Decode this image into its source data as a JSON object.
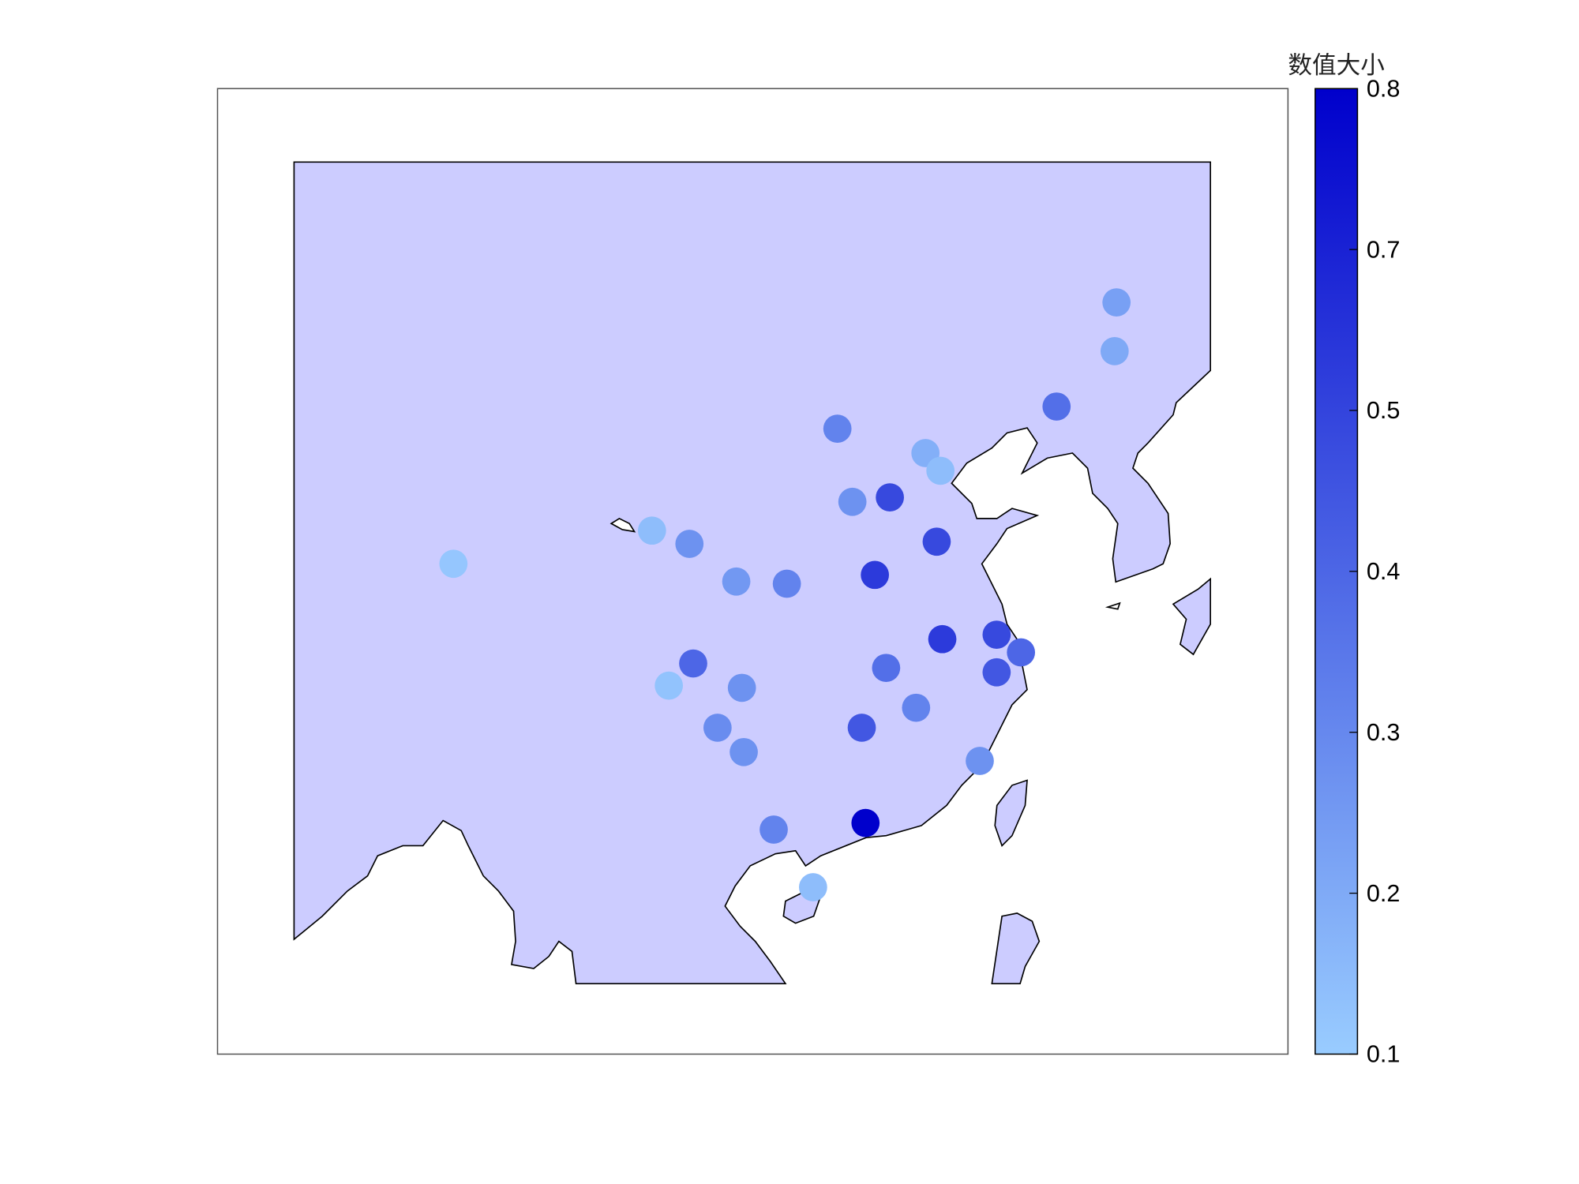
{
  "chart_data": {
    "type": "scatter",
    "title": "",
    "colorbar": {
      "title": "数值大小",
      "range": [
        0.1,
        0.8
      ],
      "tick_labels": [
        "0.8",
        "0.7",
        "0.5",
        "0.4",
        "0.3",
        "0.2",
        "0.1"
      ],
      "color_low": "#99ccff",
      "color_high": "#0000cc"
    },
    "land_color": "#ccccff",
    "coastline_color": "#000000",
    "extent": {
      "lon": [
        78,
        140
      ],
      "lat": [
        15,
        52
      ]
    },
    "points": [
      {
        "lon": 126.6,
        "lat": 46.7,
        "value": 0.25
      },
      {
        "lon": 126.5,
        "lat": 44.5,
        "value": 0.22
      },
      {
        "lon": 123.4,
        "lat": 42.0,
        "value": 0.42
      },
      {
        "lon": 111.7,
        "lat": 41.0,
        "value": 0.35
      },
      {
        "lon": 116.4,
        "lat": 39.9,
        "value": 0.2
      },
      {
        "lon": 117.2,
        "lat": 39.1,
        "value": 0.15
      },
      {
        "lon": 114.5,
        "lat": 37.9,
        "value": 0.55
      },
      {
        "lon": 112.5,
        "lat": 37.7,
        "value": 0.3
      },
      {
        "lon": 101.8,
        "lat": 36.4,
        "value": 0.15
      },
      {
        "lon": 103.8,
        "lat": 35.8,
        "value": 0.3
      },
      {
        "lon": 91.2,
        "lat": 34.9,
        "value": 0.12
      },
      {
        "lon": 117.0,
        "lat": 35.9,
        "value": 0.55
      },
      {
        "lon": 106.3,
        "lat": 34.1,
        "value": 0.28
      },
      {
        "lon": 109.0,
        "lat": 34.0,
        "value": 0.35
      },
      {
        "lon": 113.7,
        "lat": 34.4,
        "value": 0.6
      },
      {
        "lon": 117.3,
        "lat": 31.5,
        "value": 0.6
      },
      {
        "lon": 120.2,
        "lat": 31.7,
        "value": 0.55
      },
      {
        "lon": 121.5,
        "lat": 30.9,
        "value": 0.45
      },
      {
        "lon": 104.0,
        "lat": 30.4,
        "value": 0.45
      },
      {
        "lon": 114.3,
        "lat": 30.2,
        "value": 0.42
      },
      {
        "lon": 120.2,
        "lat": 30.0,
        "value": 0.5
      },
      {
        "lon": 102.7,
        "lat": 29.4,
        "value": 0.13
      },
      {
        "lon": 106.6,
        "lat": 29.3,
        "value": 0.3
      },
      {
        "lon": 115.9,
        "lat": 28.4,
        "value": 0.35
      },
      {
        "lon": 105.3,
        "lat": 27.5,
        "value": 0.32
      },
      {
        "lon": 113.0,
        "lat": 27.5,
        "value": 0.5
      },
      {
        "lon": 106.7,
        "lat": 26.4,
        "value": 0.3
      },
      {
        "lon": 119.3,
        "lat": 26.0,
        "value": 0.3
      },
      {
        "lon": 113.2,
        "lat": 23.2,
        "value": 0.8
      },
      {
        "lon": 108.3,
        "lat": 22.9,
        "value": 0.35
      },
      {
        "lon": 110.4,
        "lat": 20.3,
        "value": 0.15
      }
    ]
  }
}
